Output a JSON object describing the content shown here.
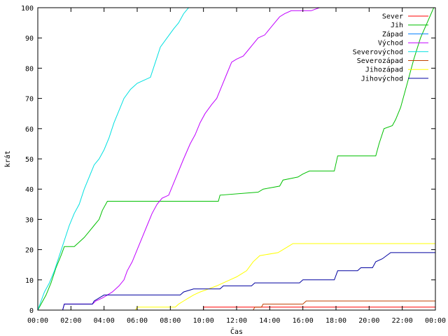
{
  "chart_data": {
    "type": "line",
    "xlabel": "Čas",
    "ylabel": "krát",
    "xlim": [
      0,
      24
    ],
    "ylim": [
      0,
      100
    ],
    "grid": false,
    "legend_position": "top-right",
    "x_ticks": [
      {
        "value": 0,
        "label": "00:00"
      },
      {
        "value": 2,
        "label": "02:00"
      },
      {
        "value": 4,
        "label": "04:00"
      },
      {
        "value": 6,
        "label": "06:00"
      },
      {
        "value": 8,
        "label": "08:00"
      },
      {
        "value": 10,
        "label": "10:00"
      },
      {
        "value": 12,
        "label": "12:00"
      },
      {
        "value": 14,
        "label": "14:00"
      },
      {
        "value": 16,
        "label": "16:00"
      },
      {
        "value": 18,
        "label": "18:00"
      },
      {
        "value": 20,
        "label": "20:00"
      },
      {
        "value": 22,
        "label": "22:00"
      },
      {
        "value": 24,
        "label": "00:00"
      }
    ],
    "y_ticks": [
      0,
      10,
      20,
      30,
      40,
      50,
      60,
      70,
      80,
      90,
      100
    ],
    "series": [
      {
        "name": "Sever",
        "color": "#ff0000",
        "points": [
          [
            0,
            0
          ],
          [
            10,
            0
          ],
          [
            10,
            1
          ],
          [
            24,
            1
          ]
        ]
      },
      {
        "name": "Jih",
        "color": "#00c000",
        "points": [
          [
            0,
            0
          ],
          [
            0.2,
            2
          ],
          [
            0.5,
            5
          ],
          [
            0.8,
            9
          ],
          [
            1.1,
            14
          ],
          [
            1.4,
            18
          ],
          [
            1.6,
            21
          ],
          [
            2.2,
            21
          ],
          [
            2.4,
            22
          ],
          [
            2.8,
            24
          ],
          [
            3.1,
            26
          ],
          [
            3.4,
            28
          ],
          [
            3.7,
            30
          ],
          [
            3.9,
            33
          ],
          [
            4.2,
            36
          ],
          [
            10.9,
            36
          ],
          [
            11,
            38
          ],
          [
            13.3,
            39
          ],
          [
            13.6,
            40
          ],
          [
            14.6,
            41
          ],
          [
            14.8,
            43
          ],
          [
            15.7,
            44
          ],
          [
            16,
            45
          ],
          [
            16.4,
            46
          ],
          [
            17.9,
            46
          ],
          [
            18.1,
            51
          ],
          [
            20.4,
            51
          ],
          [
            20.6,
            55
          ],
          [
            20.9,
            60
          ],
          [
            21.4,
            61
          ],
          [
            21.6,
            63
          ],
          [
            21.9,
            67
          ],
          [
            22.3,
            75
          ],
          [
            22.7,
            83
          ],
          [
            23.1,
            90
          ],
          [
            23.5,
            95
          ],
          [
            23.9,
            100
          ],
          [
            24,
            100
          ]
        ]
      },
      {
        "name": "Západ",
        "color": "#0080ff",
        "points": [
          [
            0,
            0
          ],
          [
            24,
            0
          ]
        ]
      },
      {
        "name": "Východ",
        "color": "#c000ff",
        "points": [
          [
            0,
            0
          ],
          [
            1.5,
            0
          ],
          [
            1.6,
            2
          ],
          [
            3.3,
            2
          ],
          [
            3.5,
            3
          ],
          [
            3.9,
            4
          ],
          [
            4.2,
            5
          ],
          [
            4.5,
            6
          ],
          [
            4.9,
            8
          ],
          [
            5.2,
            10
          ],
          [
            5.4,
            13
          ],
          [
            5.7,
            16
          ],
          [
            6.0,
            20
          ],
          [
            6.3,
            24
          ],
          [
            6.6,
            28
          ],
          [
            6.9,
            32
          ],
          [
            7.2,
            35
          ],
          [
            7.5,
            37
          ],
          [
            7.9,
            38
          ],
          [
            8.2,
            42
          ],
          [
            8.5,
            46
          ],
          [
            8.8,
            50
          ],
          [
            9.2,
            55
          ],
          [
            9.5,
            58
          ],
          [
            9.8,
            62
          ],
          [
            10.1,
            65
          ],
          [
            10.5,
            68
          ],
          [
            10.8,
            70
          ],
          [
            11.1,
            74
          ],
          [
            11.4,
            78
          ],
          [
            11.7,
            82
          ],
          [
            12.0,
            83
          ],
          [
            12.4,
            84
          ],
          [
            12.7,
            86
          ],
          [
            13.0,
            88
          ],
          [
            13.3,
            90
          ],
          [
            13.7,
            91
          ],
          [
            14.0,
            93
          ],
          [
            14.3,
            95
          ],
          [
            14.6,
            97
          ],
          [
            14.9,
            98
          ],
          [
            15.3,
            99
          ],
          [
            16.5,
            99
          ],
          [
            17.0,
            100
          ],
          [
            24,
            100
          ]
        ]
      },
      {
        "name": "Severovýchod",
        "color": "#00e0e0",
        "points": [
          [
            0,
            0
          ],
          [
            0.2,
            3
          ],
          [
            0.4,
            6
          ],
          [
            0.7,
            9
          ],
          [
            1.0,
            13
          ],
          [
            1.3,
            18
          ],
          [
            1.6,
            23
          ],
          [
            1.9,
            28
          ],
          [
            2.2,
            32
          ],
          [
            2.5,
            35
          ],
          [
            2.8,
            40
          ],
          [
            3.1,
            44
          ],
          [
            3.4,
            48
          ],
          [
            3.7,
            50
          ],
          [
            4.0,
            53
          ],
          [
            4.3,
            57
          ],
          [
            4.6,
            62
          ],
          [
            4.9,
            66
          ],
          [
            5.2,
            70
          ],
          [
            5.6,
            73
          ],
          [
            6.0,
            75
          ],
          [
            6.4,
            76
          ],
          [
            6.8,
            77
          ],
          [
            7.1,
            82
          ],
          [
            7.4,
            87
          ],
          [
            7.8,
            90
          ],
          [
            8.2,
            93
          ],
          [
            8.5,
            95
          ],
          [
            8.8,
            98
          ],
          [
            9.1,
            100
          ],
          [
            24,
            100
          ]
        ]
      },
      {
        "name": "Severozápad",
        "color": "#c04000",
        "points": [
          [
            0,
            0
          ],
          [
            13.0,
            0
          ],
          [
            13.1,
            1
          ],
          [
            13.5,
            1
          ],
          [
            13.6,
            2
          ],
          [
            16.0,
            2
          ],
          [
            16.2,
            3
          ],
          [
            24,
            3
          ]
        ]
      },
      {
        "name": "Jihozápad",
        "color": "#ffff00",
        "points": [
          [
            0,
            0
          ],
          [
            5.9,
            0
          ],
          [
            6.0,
            1
          ],
          [
            8.3,
            1
          ],
          [
            8.5,
            2
          ],
          [
            8.8,
            3
          ],
          [
            9.1,
            4
          ],
          [
            9.4,
            5
          ],
          [
            9.8,
            6
          ],
          [
            10.3,
            7
          ],
          [
            10.8,
            8
          ],
          [
            11.2,
            9
          ],
          [
            11.6,
            10
          ],
          [
            12.0,
            11
          ],
          [
            12.3,
            12
          ],
          [
            12.6,
            13
          ],
          [
            13.0,
            16
          ],
          [
            13.4,
            18
          ],
          [
            14.5,
            19
          ],
          [
            15.1,
            21
          ],
          [
            15.4,
            22
          ],
          [
            24,
            22
          ]
        ]
      },
      {
        "name": "Jihovýchod",
        "color": "#0000a0",
        "points": [
          [
            0,
            0
          ],
          [
            1.5,
            0
          ],
          [
            1.6,
            2
          ],
          [
            3.3,
            2
          ],
          [
            3.4,
            3
          ],
          [
            3.7,
            4
          ],
          [
            4.0,
            5
          ],
          [
            8.6,
            5
          ],
          [
            8.8,
            6
          ],
          [
            9.4,
            7
          ],
          [
            11.0,
            7
          ],
          [
            11.2,
            8
          ],
          [
            12.9,
            8
          ],
          [
            13.1,
            9
          ],
          [
            15.8,
            9
          ],
          [
            16.0,
            10
          ],
          [
            17.9,
            10
          ],
          [
            18.1,
            13
          ],
          [
            19.3,
            13
          ],
          [
            19.5,
            14
          ],
          [
            20.2,
            14
          ],
          [
            20.4,
            16
          ],
          [
            20.8,
            17
          ],
          [
            21.3,
            19
          ],
          [
            24,
            19
          ]
        ]
      }
    ]
  }
}
